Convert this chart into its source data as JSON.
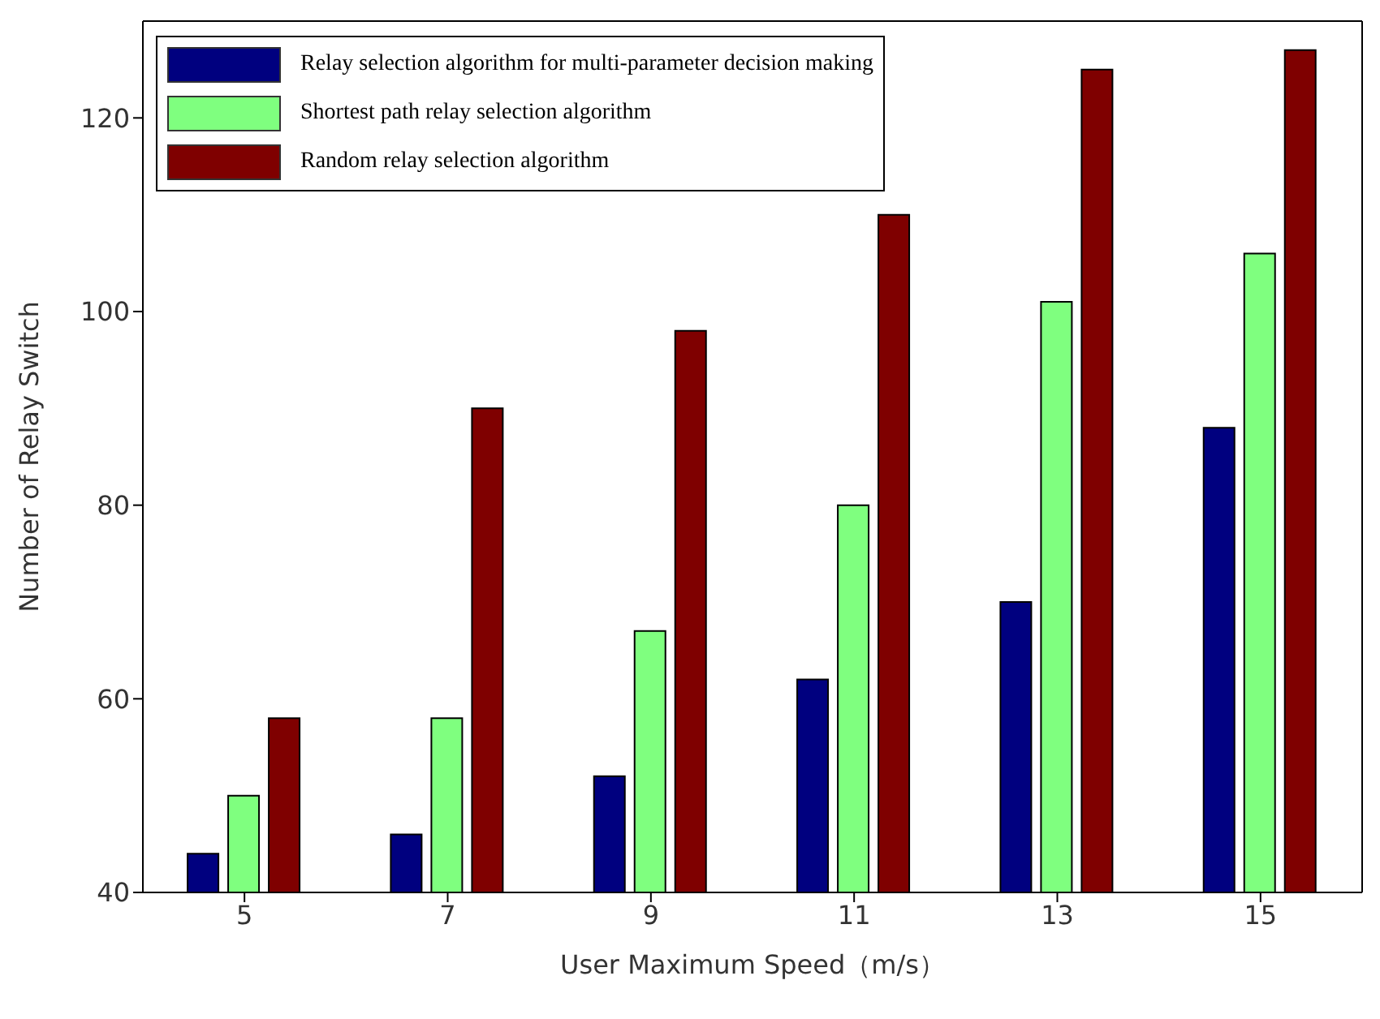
{
  "chart_data": {
    "type": "bar",
    "xlabel": "User Maximum Speed（m/s）",
    "ylabel": "Number of Relay Switch",
    "categories": [
      "5",
      "7",
      "9",
      "11",
      "13",
      "15"
    ],
    "series": [
      {
        "name": "Relay selection algorithm for multi-parameter decision making",
        "color": "#00007f",
        "values": [
          44,
          46,
          52,
          62,
          70,
          88
        ]
      },
      {
        "name": "Shortest path relay selection algorithm",
        "color": "#7fff7f",
        "values": [
          50,
          58,
          67,
          80,
          101,
          106
        ]
      },
      {
        "name": "Random relay selection algorithm",
        "color": "#7f0000",
        "values": [
          58,
          90,
          98,
          110,
          125,
          127
        ]
      }
    ],
    "ylim": [
      40,
      130
    ],
    "yticks": [
      40,
      60,
      80,
      100,
      120
    ],
    "grid": false,
    "legend": "top left"
  }
}
